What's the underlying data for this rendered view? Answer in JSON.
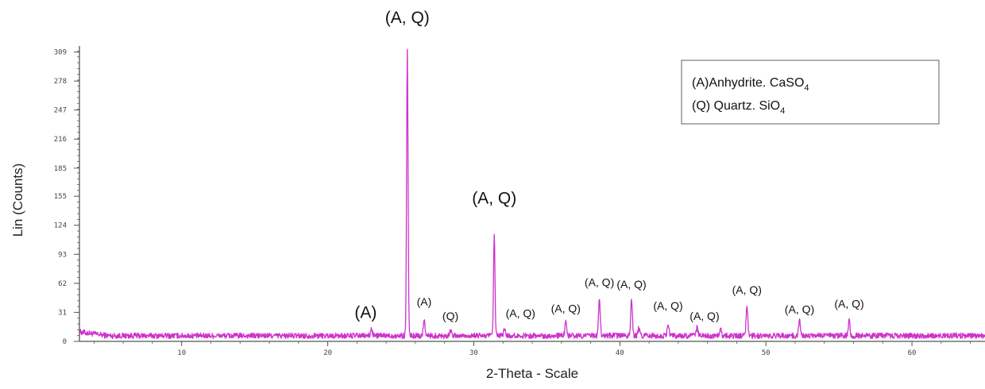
{
  "chart_data": {
    "type": "line",
    "title": "",
    "xlabel": "2-Theta - Scale",
    "ylabel": "Lin (Counts)",
    "xlim": [
      3,
      65
    ],
    "ylim": [
      0,
      312
    ],
    "x_ticks": [
      10,
      20,
      30,
      40,
      50,
      60
    ],
    "y_ticks": [
      0,
      31,
      62,
      93,
      124,
      155,
      185,
      216,
      247,
      278,
      309
    ],
    "grid": false,
    "series": [
      {
        "color": "#cc33cc",
        "baseline": 6,
        "peaks": [
          {
            "x": 23.0,
            "y": 14
          },
          {
            "x": 25.45,
            "y": 312
          },
          {
            "x": 26.6,
            "y": 24
          },
          {
            "x": 28.4,
            "y": 12
          },
          {
            "x": 31.4,
            "y": 114
          },
          {
            "x": 32.1,
            "y": 14
          },
          {
            "x": 36.3,
            "y": 22
          },
          {
            "x": 38.6,
            "y": 46
          },
          {
            "x": 40.8,
            "y": 46
          },
          {
            "x": 41.3,
            "y": 14
          },
          {
            "x": 43.3,
            "y": 20
          },
          {
            "x": 45.3,
            "y": 15
          },
          {
            "x": 46.9,
            "y": 12
          },
          {
            "x": 48.7,
            "y": 38
          },
          {
            "x": 52.3,
            "y": 22
          },
          {
            "x": 55.7,
            "y": 24
          }
        ]
      }
    ],
    "annotations": [
      {
        "text": "(A, Q)",
        "x": 25.45,
        "y": 340,
        "size": "large"
      },
      {
        "text": "(A, Q)",
        "x": 31.4,
        "y": 147,
        "size": "large"
      },
      {
        "text": "(A)",
        "x": 22.6,
        "y": 25,
        "size": "large"
      },
      {
        "text": "(A)",
        "x": 26.6,
        "y": 38,
        "size": "small"
      },
      {
        "text": "(Q)",
        "x": 28.4,
        "y": 23,
        "size": "small"
      },
      {
        "text": "(A, Q)",
        "x": 33.2,
        "y": 26,
        "size": "small"
      },
      {
        "text": "(A, Q)",
        "x": 36.3,
        "y": 31,
        "size": "small"
      },
      {
        "text": "(A, Q)",
        "x": 38.6,
        "y": 59,
        "size": "small"
      },
      {
        "text": "(A, Q)",
        "x": 40.8,
        "y": 57,
        "size": "small"
      },
      {
        "text": "(A, Q)",
        "x": 43.3,
        "y": 34,
        "size": "small"
      },
      {
        "text": "(A, Q)",
        "x": 45.8,
        "y": 23,
        "size": "small"
      },
      {
        "text": "(A, Q)",
        "x": 48.7,
        "y": 51,
        "size": "small"
      },
      {
        "text": "(A, Q)",
        "x": 52.3,
        "y": 30,
        "size": "small"
      },
      {
        "text": "(A, Q)",
        "x": 55.7,
        "y": 36,
        "size": "small"
      }
    ],
    "legend": {
      "position": "top-right",
      "entries": [
        {
          "prefix": "(A)Anhydrite. CaSO",
          "subscript": "4"
        },
        {
          "prefix": "(Q) Quartz. SiO",
          "subscript": "4"
        }
      ]
    }
  }
}
